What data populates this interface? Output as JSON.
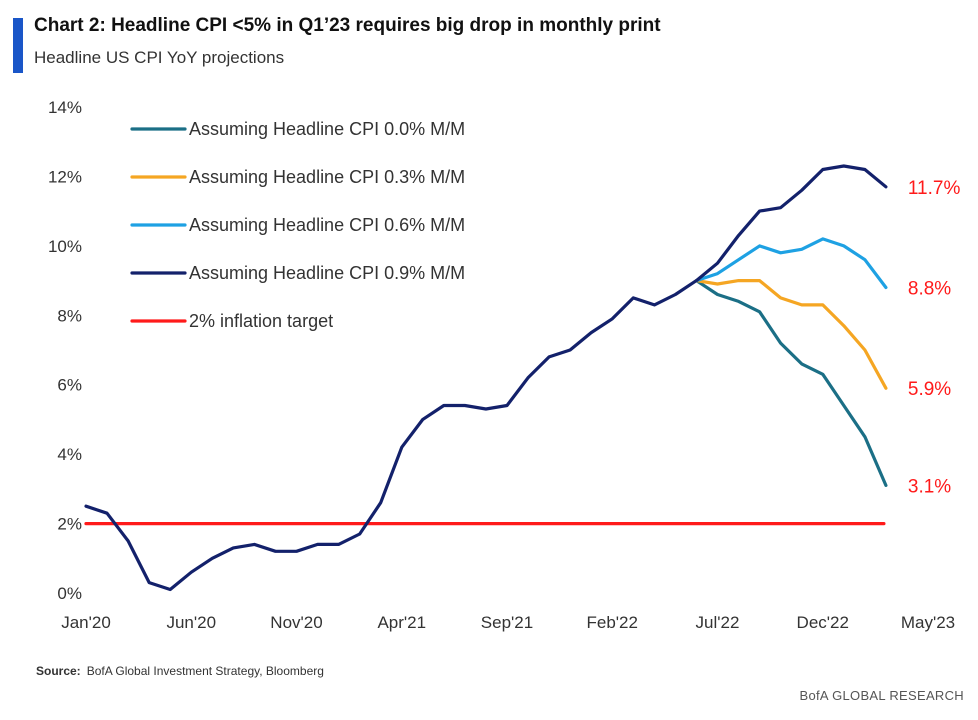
{
  "header": {
    "title": "Chart 2: Headline CPI <5% in Q1’23  requires big drop in monthly print",
    "subtitle": "Headline US CPI YoY projections",
    "accent_color": "#1a56c8"
  },
  "footer": {
    "source_label": "Source:",
    "source_text": "BofA Global Investment Strategy, Bloomberg",
    "brand": "BofA GLOBAL RESEARCH"
  },
  "chart_data": {
    "type": "line",
    "ylim": [
      0,
      14
    ],
    "yticks": [
      0,
      2,
      4,
      6,
      8,
      10,
      12,
      14
    ],
    "ytick_labels": [
      "0%",
      "2%",
      "4%",
      "6%",
      "8%",
      "10%",
      "12%",
      "14%"
    ],
    "xlim": [
      "2020-01",
      "2023-05"
    ],
    "xticks": [
      "2020-01",
      "2020-06",
      "2020-11",
      "2021-04",
      "2021-09",
      "2022-02",
      "2022-07",
      "2022-12",
      "2023-05"
    ],
    "xtick_labels": [
      "Jan'20",
      "Jun'20",
      "Nov'20",
      "Apr'21",
      "Sep'21",
      "Feb'22",
      "Jul'22",
      "Dec'22",
      "May'23"
    ],
    "grid": false,
    "legend_position": "top-left",
    "series": [
      {
        "name": "Assuming Headline CPI 0.0% M/M",
        "color": "#1b6f86",
        "end_label": "3.1%",
        "x": [
          "2022-06",
          "2022-07",
          "2022-08",
          "2022-09",
          "2022-10",
          "2022-11",
          "2022-12",
          "2023-01",
          "2023-02",
          "2023-03"
        ],
        "y": [
          9.0,
          8.6,
          8.4,
          8.1,
          7.2,
          6.6,
          6.3,
          5.4,
          4.5,
          3.1
        ]
      },
      {
        "name": "Assuming Headline CPI 0.3% M/M",
        "color": "#f5a623",
        "end_label": "5.9%",
        "x": [
          "2022-06",
          "2022-07",
          "2022-08",
          "2022-09",
          "2022-10",
          "2022-11",
          "2022-12",
          "2023-01",
          "2023-02",
          "2023-03"
        ],
        "y": [
          9.0,
          8.9,
          9.0,
          9.0,
          8.5,
          8.3,
          8.3,
          7.7,
          7.0,
          5.9
        ]
      },
      {
        "name": "Assuming Headline CPI 0.6% M/M",
        "color": "#1ea1e3",
        "end_label": "8.8%",
        "x": [
          "2022-06",
          "2022-07",
          "2022-08",
          "2022-09",
          "2022-10",
          "2022-11",
          "2022-12",
          "2023-01",
          "2023-02",
          "2023-03"
        ],
        "y": [
          9.0,
          9.2,
          9.6,
          10.0,
          9.8,
          9.9,
          10.2,
          10.0,
          9.6,
          8.8
        ]
      },
      {
        "name": "Assuming Headline CPI 0.9% M/M",
        "color": "#13216b",
        "end_label": "11.7%",
        "x": [
          "2020-01",
          "2020-02",
          "2020-03",
          "2020-04",
          "2020-05",
          "2020-06",
          "2020-07",
          "2020-08",
          "2020-09",
          "2020-10",
          "2020-11",
          "2020-12",
          "2021-01",
          "2021-02",
          "2021-03",
          "2021-04",
          "2021-05",
          "2021-06",
          "2021-07",
          "2021-08",
          "2021-09",
          "2021-10",
          "2021-11",
          "2021-12",
          "2022-01",
          "2022-02",
          "2022-03",
          "2022-04",
          "2022-05",
          "2022-06",
          "2022-07",
          "2022-08",
          "2022-09",
          "2022-10",
          "2022-11",
          "2022-12",
          "2023-01",
          "2023-02",
          "2023-03"
        ],
        "y": [
          2.5,
          2.3,
          1.5,
          0.3,
          0.1,
          0.6,
          1.0,
          1.3,
          1.4,
          1.2,
          1.2,
          1.4,
          1.4,
          1.7,
          2.6,
          4.2,
          5.0,
          5.4,
          5.4,
          5.3,
          5.4,
          6.2,
          6.8,
          7.0,
          7.5,
          7.9,
          8.5,
          8.3,
          8.6,
          9.0,
          9.5,
          10.3,
          11.0,
          11.1,
          11.6,
          12.2,
          12.3,
          12.2,
          11.7
        ]
      },
      {
        "name": "2% inflation target",
        "color": "#ff1a1a",
        "x": [
          "2020-01",
          "2023-03"
        ],
        "y": [
          2.0,
          2.0
        ]
      }
    ],
    "end_label_color": "#ff1a1a"
  }
}
